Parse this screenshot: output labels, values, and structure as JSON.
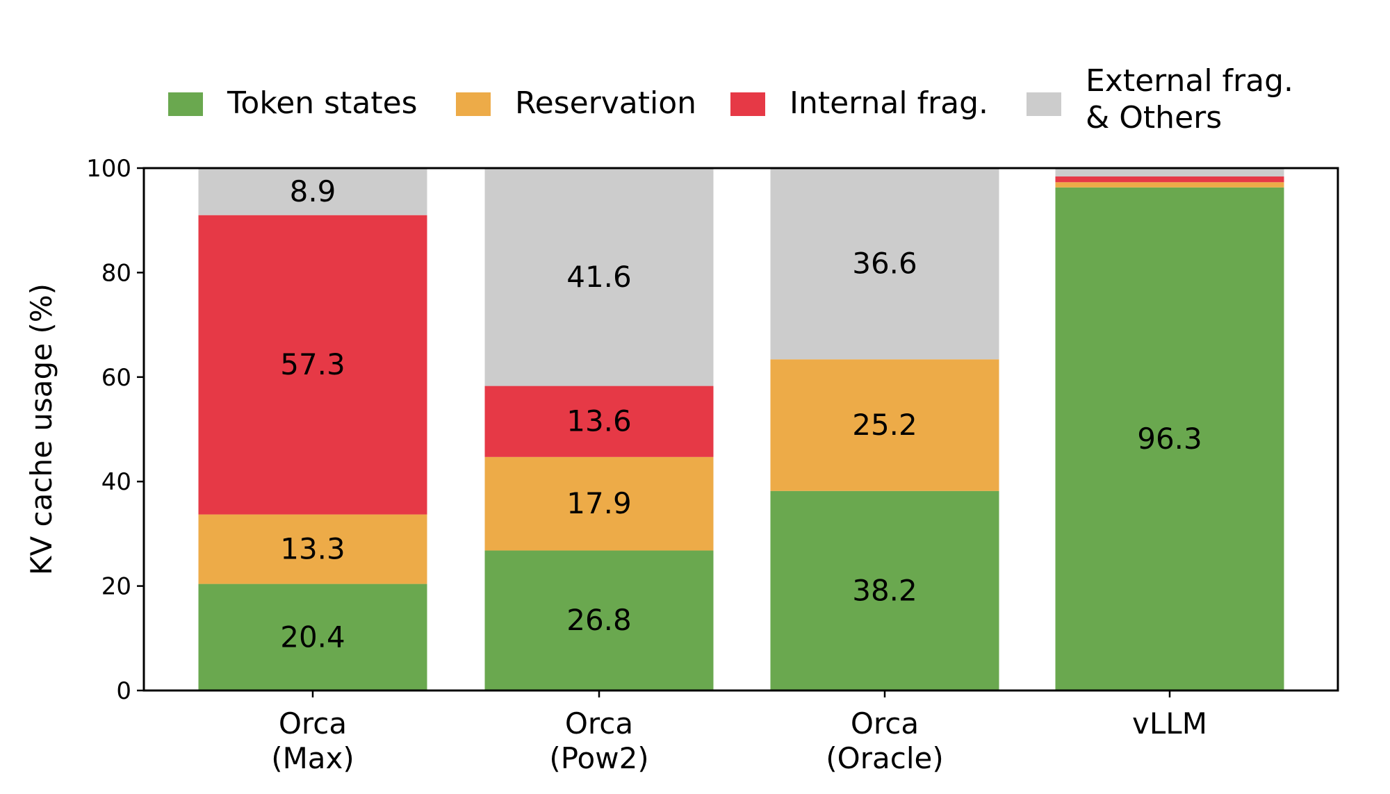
{
  "chart_data": {
    "type": "bar",
    "stacked": true,
    "categories": [
      "Orca\n(Max)",
      "Orca\n(Pow2)",
      "Orca\n(Oracle)",
      "vLLM"
    ],
    "series": [
      {
        "name": "Token states",
        "color": "#6aa84f",
        "values": [
          20.4,
          26.8,
          38.2,
          96.3
        ],
        "labels": [
          "20.4",
          "26.8",
          "38.2",
          "96.3"
        ]
      },
      {
        "name": "Reservation",
        "color": "#edab48",
        "values": [
          13.3,
          17.9,
          25.2,
          1.0
        ],
        "labels": [
          "13.3",
          "17.9",
          "25.2",
          ""
        ]
      },
      {
        "name": "Internal frag.",
        "color": "#e63946",
        "values": [
          57.3,
          13.6,
          0,
          1.1
        ],
        "labels": [
          "57.3",
          "13.6",
          "",
          ""
        ]
      },
      {
        "name": "External frag.\n& Others",
        "color": "#cccccc",
        "values": [
          8.9,
          41.6,
          36.6,
          1.6
        ],
        "labels": [
          "8.9",
          "41.6",
          "36.6",
          ""
        ]
      }
    ],
    "xlabel": "",
    "ylabel": "KV cache usage (%)",
    "ylim": [
      0,
      100
    ],
    "yticks": [
      0,
      20,
      40,
      60,
      80,
      100
    ],
    "grid": false,
    "legend_position": "top"
  }
}
